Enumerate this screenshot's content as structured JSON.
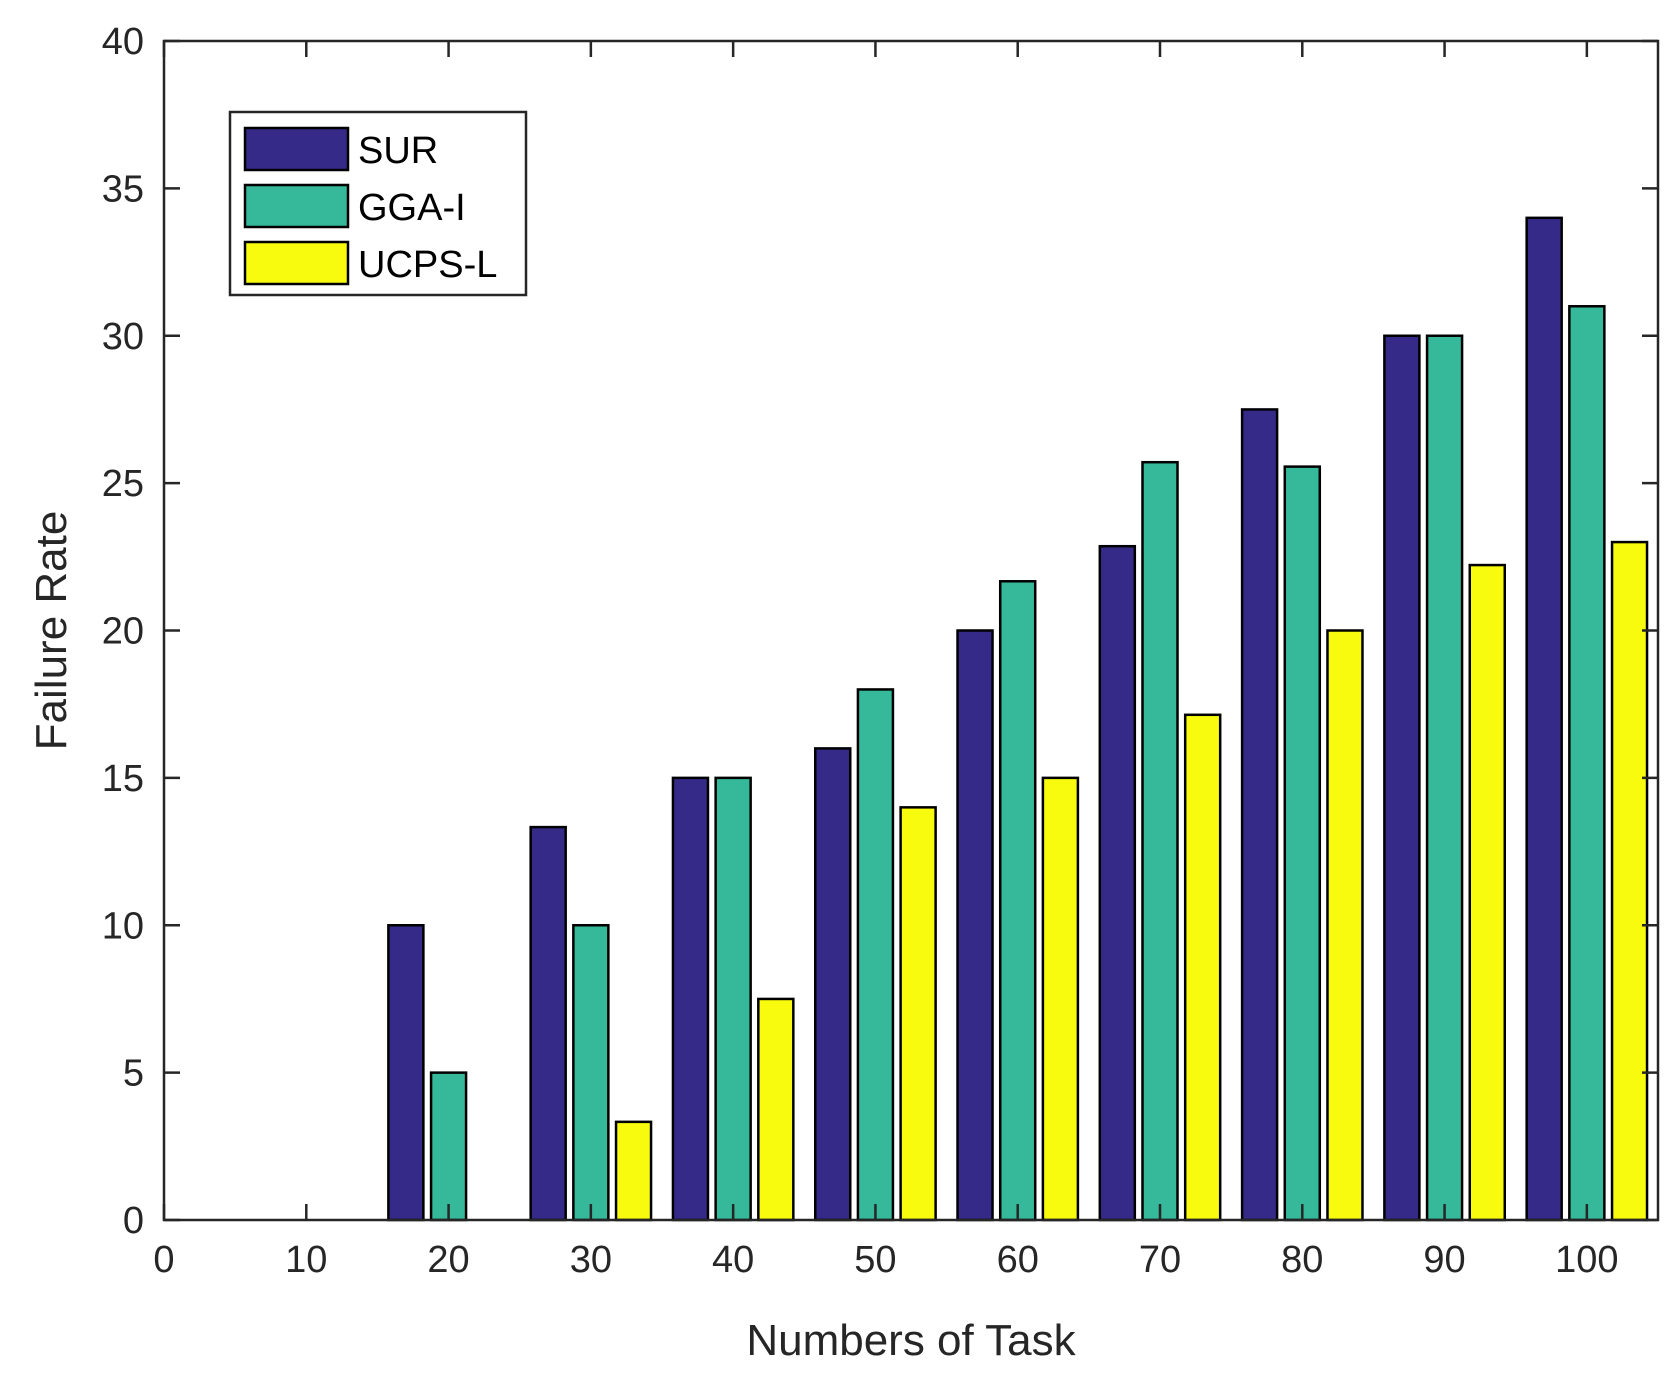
{
  "chart_data": {
    "type": "bar",
    "title": "",
    "xlabel": "Numbers of Task",
    "ylabel": "Failure Rate",
    "xlim": [
      0,
      105
    ],
    "ylim": [
      0,
      40
    ],
    "xticks": [
      0,
      10,
      20,
      30,
      40,
      50,
      60,
      70,
      80,
      90,
      100
    ],
    "yticks": [
      0,
      5,
      10,
      15,
      20,
      25,
      30,
      35,
      40
    ],
    "categories": [
      10,
      20,
      30,
      40,
      50,
      60,
      70,
      80,
      90,
      100
    ],
    "series": [
      {
        "name": "SUR",
        "color": "#352A87",
        "values": [
          0,
          10,
          13.33,
          15,
          16,
          20,
          22.86,
          27.5,
          30,
          34
        ]
      },
      {
        "name": "GGA-I",
        "color": "#36B99A",
        "values": [
          0,
          5,
          10,
          15,
          18,
          21.67,
          25.71,
          25.56,
          30,
          31
        ]
      },
      {
        "name": "UCPS-L",
        "color": "#F9FB0E",
        "values": [
          0,
          0,
          3.33,
          7.5,
          14,
          15,
          17.14,
          20,
          22.22,
          23
        ]
      }
    ],
    "legend": "top-left",
    "grid": false
  }
}
